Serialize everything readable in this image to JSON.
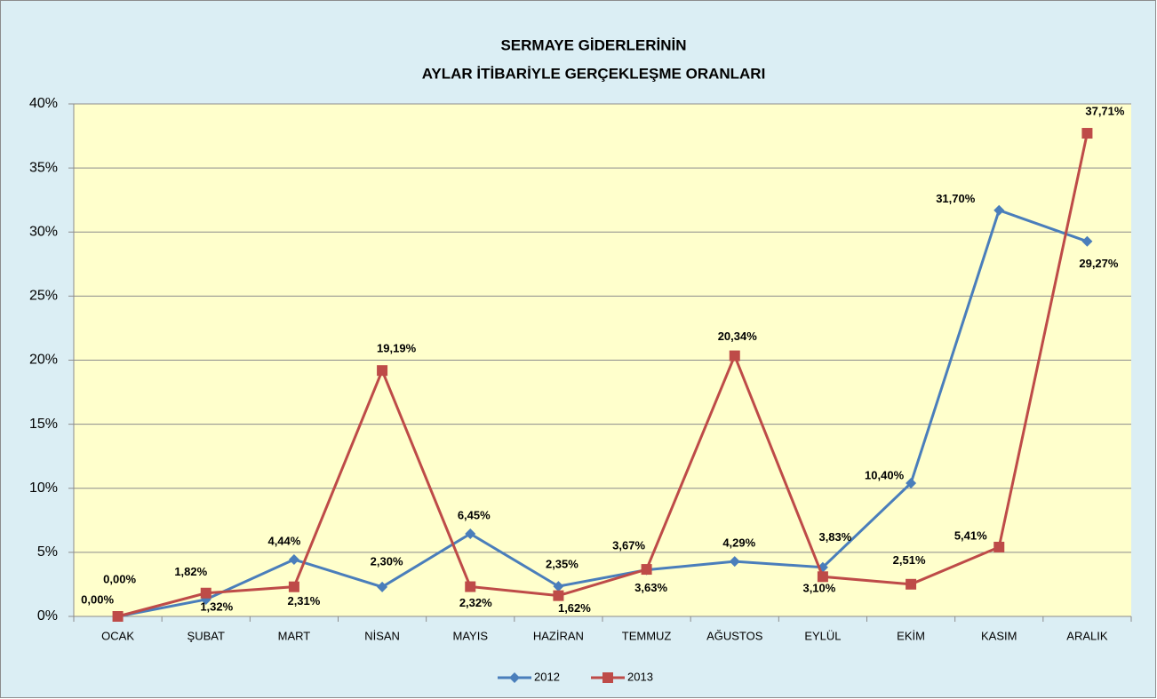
{
  "chart_data": {
    "type": "line",
    "title": [
      "SERMAYE GİDERLERİNİN",
      "AYLAR İTİBARİYLE GERÇEKLEŞME ORANLARI"
    ],
    "categories": [
      "OCAK",
      "ŞUBAT",
      "MART",
      "NİSAN",
      "MAYIS",
      "HAZİRAN",
      "TEMMUZ",
      "AĞUSTOS",
      "EYLÜL",
      "EKİM",
      "KASIM",
      "ARALIK"
    ],
    "series": [
      {
        "name": "2012",
        "color": "#4a7ebb",
        "marker": "diamond",
        "values": [
          0,
          1.32,
          4.44,
          2.3,
          6.45,
          2.35,
          3.63,
          4.29,
          3.83,
          10.4,
          31.7,
          29.27
        ],
        "value_labels": [
          "0,00%",
          "1,32%",
          "4,44%",
          "2,30%",
          "6,45%",
          "2,35%",
          "3,63%",
          "4,29%",
          "3,83%",
          "10,40%",
          "31,70%",
          "29,27%"
        ]
      },
      {
        "name": "2013",
        "color": "#be4b48",
        "marker": "square",
        "values": [
          0,
          1.82,
          2.31,
          19.19,
          2.32,
          1.62,
          3.67,
          20.34,
          3.1,
          2.51,
          5.41,
          37.71
        ],
        "value_labels": [
          "0,00%",
          "1,82%",
          "2,31%",
          "19,19%",
          "2,32%",
          "1,62%",
          "3,67%",
          "20,34%",
          "3,10%",
          "2,51%",
          "5,41%",
          "37,71%"
        ]
      }
    ],
    "ylim": [
      0,
      40
    ],
    "yticks": [
      {
        "value": 0,
        "label": "0%"
      },
      {
        "value": 5,
        "label": "5%"
      },
      {
        "value": 10,
        "label": "10%"
      },
      {
        "value": 15,
        "label": "15%"
      },
      {
        "value": 20,
        "label": "20%"
      },
      {
        "value": 25,
        "label": "25%"
      },
      {
        "value": 30,
        "label": "30%"
      },
      {
        "value": 35,
        "label": "35%"
      },
      {
        "value": 40,
        "label": "40%"
      }
    ],
    "grid": true,
    "legend": "bottom"
  }
}
